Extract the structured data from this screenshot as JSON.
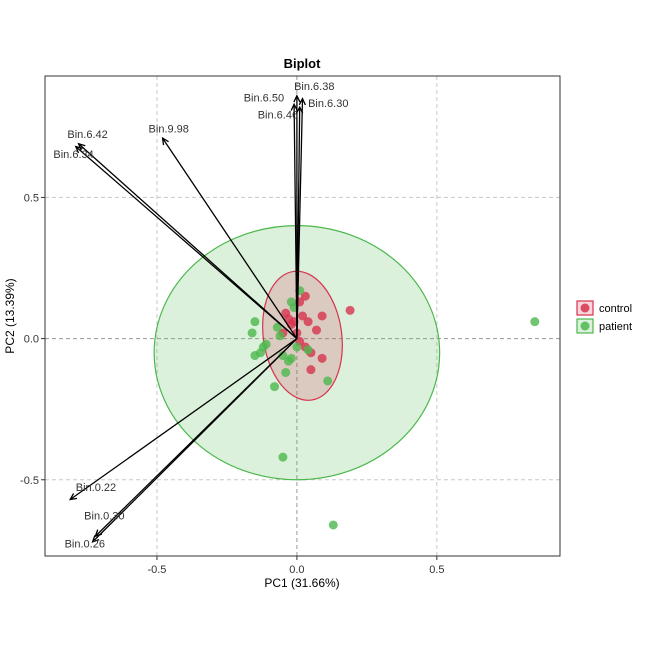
{
  "chart_data": {
    "type": "scatter",
    "title": "Biplot",
    "xlabel": "PC1 (31.66%)",
    "ylabel": "PC2 (13.39%)",
    "xlim": [
      -0.9,
      0.94
    ],
    "ylim": [
      -0.77,
      0.93
    ],
    "x_ticks": [
      -0.5,
      0.0,
      0.5
    ],
    "y_ticks": [
      -0.5,
      0.0,
      0.5
    ],
    "x_tick_labels": [
      "-0.5",
      "0.0",
      "0.5"
    ],
    "y_tick_labels": [
      "-0.5",
      "0.0",
      "0.5"
    ],
    "grid": true,
    "legend_position": "right",
    "colors": {
      "control": "#d6334f",
      "patient": "#4cb84c",
      "arrow": "#000000",
      "grid": "#c8c8c8",
      "zero_line": "#9a9a9a"
    },
    "series": [
      {
        "name": "control",
        "ellipse": {
          "center": [
            0.02,
            0.01
          ],
          "rx": 0.14,
          "ry": 0.23,
          "angle": -8
        },
        "points": [
          [
            -0.04,
            0.09
          ],
          [
            -0.01,
            0.06
          ],
          [
            0.03,
            0.15
          ],
          [
            0.01,
            0.13
          ],
          [
            0.04,
            0.06
          ],
          [
            -0.05,
            0.02
          ],
          [
            0.02,
            0.08
          ],
          [
            0.09,
            0.08
          ],
          [
            0.19,
            0.1
          ],
          [
            0.07,
            0.03
          ],
          [
            0.03,
            -0.03
          ],
          [
            0.05,
            -0.05
          ],
          [
            0.09,
            -0.07
          ],
          [
            0.05,
            -0.11
          ],
          [
            0.01,
            -0.01
          ],
          [
            -0.02,
            0.05
          ],
          [
            0.0,
            0.02
          ],
          [
            -0.03,
            0.07
          ]
        ]
      },
      {
        "name": "patient",
        "ellipse": {
          "center": [
            0.0,
            -0.05
          ],
          "rx": 0.51,
          "ry": 0.45,
          "angle": 0
        },
        "points": [
          [
            0.01,
            0.17
          ],
          [
            -0.02,
            0.13
          ],
          [
            -0.01,
            0.11
          ],
          [
            -0.15,
            0.06
          ],
          [
            -0.16,
            0.02
          ],
          [
            -0.12,
            -0.03
          ],
          [
            -0.11,
            -0.02
          ],
          [
            -0.13,
            -0.05
          ],
          [
            -0.15,
            -0.06
          ],
          [
            -0.07,
            0.04
          ],
          [
            -0.05,
            -0.06
          ],
          [
            -0.03,
            -0.08
          ],
          [
            -0.04,
            -0.12
          ],
          [
            -0.08,
            -0.17
          ],
          [
            0.04,
            -0.04
          ],
          [
            0.11,
            -0.15
          ],
          [
            0.85,
            0.06
          ],
          [
            -0.05,
            -0.42
          ],
          [
            0.13,
            -0.66
          ],
          [
            -0.02,
            -0.07
          ],
          [
            0.0,
            -0.03
          ],
          [
            -0.06,
            0.01
          ]
        ]
      }
    ],
    "loadings": [
      {
        "name": "Bin.6.42",
        "x": -0.78,
        "y": 0.69
      },
      {
        "name": "Bin.6.34",
        "x": -0.79,
        "y": 0.68
      },
      {
        "name": "Bin.9.98",
        "x": -0.48,
        "y": 0.71
      },
      {
        "name": "Bin.6.38",
        "x": 0.0,
        "y": 0.86
      },
      {
        "name": "Bin.6.50",
        "x": -0.01,
        "y": 0.83
      },
      {
        "name": "Bin.6.30",
        "x": 0.02,
        "y": 0.85
      },
      {
        "name": "Bin.6.46",
        "x": 0.01,
        "y": 0.82
      },
      {
        "name": "Bin.0.22",
        "x": -0.81,
        "y": -0.57
      },
      {
        "name": "Bin.0.30",
        "x": -0.72,
        "y": -0.7
      },
      {
        "name": "Bin.0.26",
        "x": -0.73,
        "y": -0.72
      }
    ],
    "loading_labels": [
      {
        "text": "Bin.6.42",
        "x": -0.82,
        "y": 0.71
      },
      {
        "text": "Bin.6.34",
        "x": -0.87,
        "y": 0.64
      },
      {
        "text": "Bin.9.98",
        "x": -0.53,
        "y": 0.73
      },
      {
        "text": "Bin.6.38",
        "x": -0.01,
        "y": 0.88
      },
      {
        "text": "Bin.6.50",
        "x": -0.19,
        "y": 0.84
      },
      {
        "text": "Bin.6.30",
        "x": 0.04,
        "y": 0.82
      },
      {
        "text": "Bin.6.46",
        "x": -0.14,
        "y": 0.78
      },
      {
        "text": "Bin.0.22",
        "x": -0.79,
        "y": -0.54
      },
      {
        "text": "Bin.0.30",
        "x": -0.76,
        "y": -0.64
      },
      {
        "text": "Bin.0.26",
        "x": -0.83,
        "y": -0.74
      }
    ],
    "legend": [
      {
        "label": "control",
        "series": "control"
      },
      {
        "label": "patient",
        "series": "patient"
      }
    ]
  }
}
